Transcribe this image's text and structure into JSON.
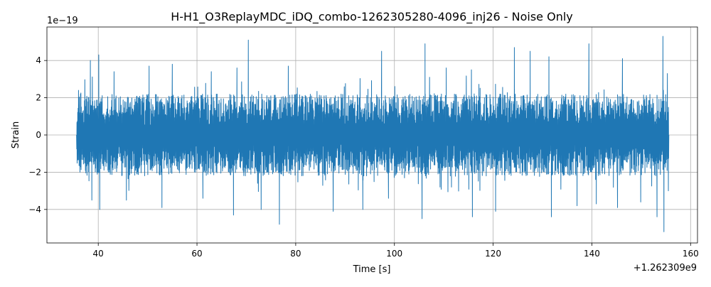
{
  "chart_data": {
    "type": "line",
    "title": "H-H1_O3ReplayMDC_iDQ_combo-1262305280-4096_inj26 - Noise Only",
    "xlabel": "Time [s]",
    "ylabel": "Strain",
    "x_offset_label": "+1.262309e9",
    "y_scale_label": "1e−19",
    "xlim": [
      29.6,
      161.4
    ],
    "ylim": [
      -5.8,
      5.8
    ],
    "x_ticks": [
      40,
      60,
      80,
      100,
      120,
      140,
      160
    ],
    "x_tick_labels": [
      "40",
      "60",
      "80",
      "100",
      "120",
      "140",
      "160"
    ],
    "y_ticks": [
      -4,
      -2,
      0,
      2,
      4
    ],
    "y_tick_labels": [
      "−4",
      "−2",
      "0",
      "2",
      "4"
    ],
    "grid": true,
    "series": [
      {
        "color": "#1f77b4",
        "x_range": [
          35.6,
          155.6
        ],
        "typical_envelope": 2.0,
        "peaks": [
          {
            "x": 36.0,
            "y": 2.4
          },
          {
            "x": 36.3,
            "y": -2.0
          },
          {
            "x": 38.4,
            "y": 4.0
          },
          {
            "x": 38.7,
            "y": -3.5
          },
          {
            "x": 40.1,
            "y": 4.3
          },
          {
            "x": 40.3,
            "y": -4.0
          },
          {
            "x": 43.2,
            "y": 3.4
          },
          {
            "x": 45.7,
            "y": -3.5
          },
          {
            "x": 50.3,
            "y": 3.7
          },
          {
            "x": 52.9,
            "y": -3.9
          },
          {
            "x": 55.0,
            "y": 3.8
          },
          {
            "x": 61.2,
            "y": -3.4
          },
          {
            "x": 62.9,
            "y": 3.4
          },
          {
            "x": 67.4,
            "y": -4.3
          },
          {
            "x": 68.1,
            "y": 3.6
          },
          {
            "x": 70.4,
            "y": 5.1
          },
          {
            "x": 73.0,
            "y": -4.0
          },
          {
            "x": 76.7,
            "y": -4.8
          },
          {
            "x": 78.5,
            "y": 3.7
          },
          {
            "x": 87.6,
            "y": -4.1
          },
          {
            "x": 93.6,
            "y": -4.0
          },
          {
            "x": 97.4,
            "y": 4.5
          },
          {
            "x": 98.8,
            "y": -3.4
          },
          {
            "x": 105.6,
            "y": -4.5
          },
          {
            "x": 106.2,
            "y": 4.9
          },
          {
            "x": 110.5,
            "y": 3.6
          },
          {
            "x": 115.6,
            "y": 3.5
          },
          {
            "x": 115.8,
            "y": -4.4
          },
          {
            "x": 120.5,
            "y": -4.1
          },
          {
            "x": 124.3,
            "y": 4.7
          },
          {
            "x": 127.5,
            "y": 4.5
          },
          {
            "x": 131.3,
            "y": 4.2
          },
          {
            "x": 131.8,
            "y": -4.4
          },
          {
            "x": 137.0,
            "y": -3.8
          },
          {
            "x": 139.4,
            "y": 4.9
          },
          {
            "x": 140.9,
            "y": -3.7
          },
          {
            "x": 145.2,
            "y": -3.9
          },
          {
            "x": 146.2,
            "y": 4.1
          },
          {
            "x": 149.9,
            "y": -3.6
          },
          {
            "x": 153.2,
            "y": -4.4
          },
          {
            "x": 154.4,
            "y": 5.3
          },
          {
            "x": 154.6,
            "y": -5.2
          },
          {
            "x": 155.3,
            "y": 3.3
          },
          {
            "x": 155.5,
            "y": -3.0
          }
        ]
      }
    ]
  }
}
